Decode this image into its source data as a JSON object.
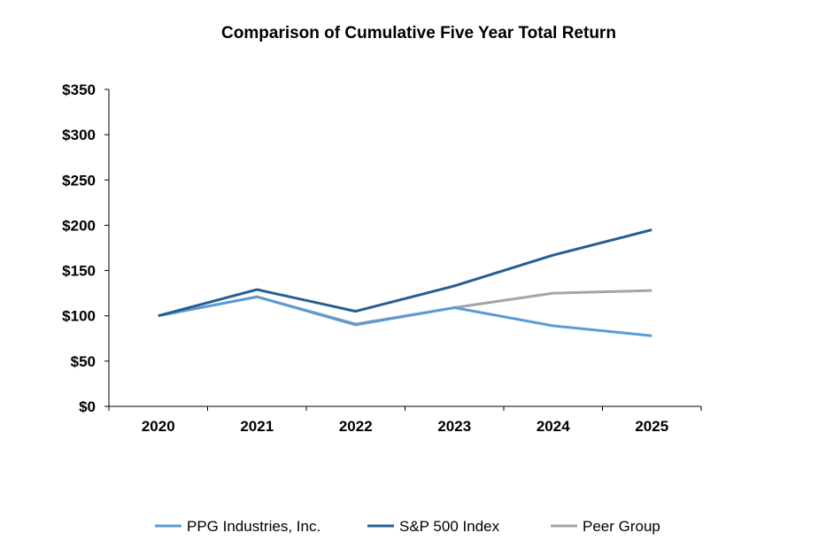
{
  "chart_data": {
    "type": "line",
    "title": "Comparison of Cumulative Five Year Total Return",
    "xlabel": "",
    "ylabel": "",
    "categories": [
      "2020",
      "2021",
      "2022",
      "2023",
      "2024",
      "2025"
    ],
    "ylim": [
      0,
      350
    ],
    "yticks": [
      0,
      50,
      100,
      150,
      200,
      250,
      300,
      350
    ],
    "ytick_labels": [
      "$0",
      "$50",
      "$100",
      "$150",
      "$200",
      "$250",
      "$300",
      "$350"
    ],
    "grid": false,
    "legend_position": "bottom",
    "series": [
      {
        "name": "PPG Industries, Inc.",
        "color": "#5B9BD5",
        "values": [
          100,
          121,
          90,
          109,
          89,
          78
        ]
      },
      {
        "name": "S&P 500 Index",
        "color": "#255E91",
        "values": [
          100,
          129,
          105,
          133,
          167,
          195
        ]
      },
      {
        "name": "Peer Group",
        "color": "#A5A5A5",
        "values": [
          100,
          121,
          91,
          109,
          125,
          128
        ]
      }
    ]
  }
}
